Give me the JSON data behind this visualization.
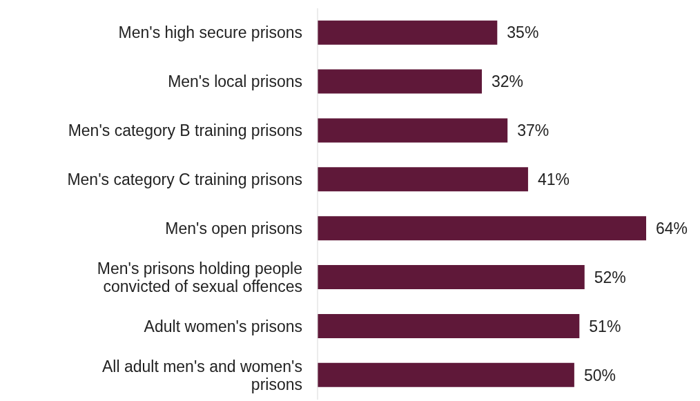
{
  "chart_data": {
    "type": "bar",
    "orientation": "horizontal",
    "tick_labels": "y",
    "categories": [
      "Men's high secure prisons",
      "Men's local prisons",
      "Men's category B training prisons",
      "Men's category C training prisons",
      "Men's open prisons",
      "Men's prisons holding people convicted of sexual offences",
      "Adult women's prisons",
      "All adult men's and women's prisons"
    ],
    "values": [
      35,
      32,
      37,
      41,
      64,
      52,
      51,
      50
    ],
    "value_labels": [
      "35%",
      "32%",
      "37%",
      "41%",
      "64%",
      "52%",
      "51%",
      "50%"
    ],
    "color": "#5f1839"
  }
}
